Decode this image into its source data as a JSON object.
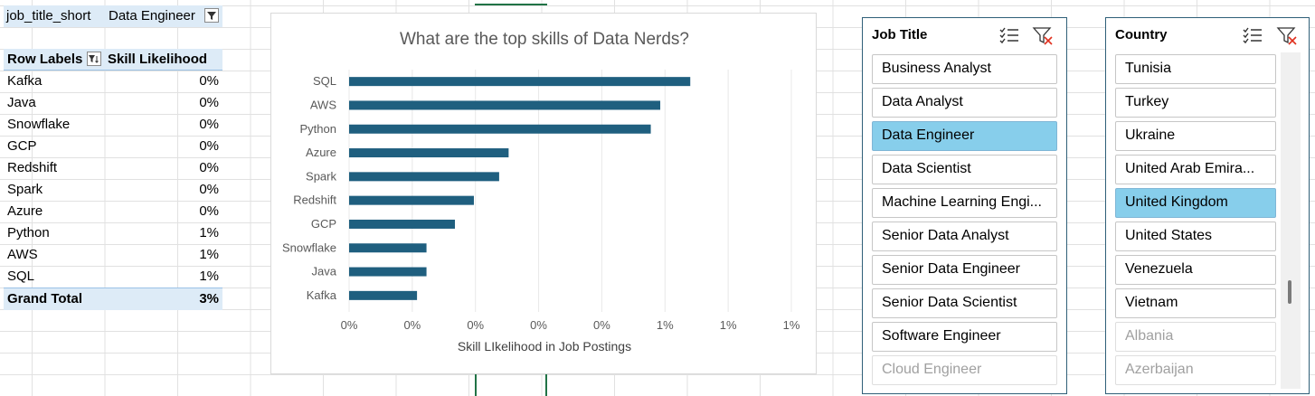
{
  "pivot": {
    "filter_field": "job_title_short",
    "filter_value": "Data Engineer",
    "header_row_labels": "Row Labels",
    "header_value": "Skill Likelihood",
    "rows": [
      {
        "label": "Kafka",
        "value": "0%"
      },
      {
        "label": "Java",
        "value": "0%"
      },
      {
        "label": "Snowflake",
        "value": "0%"
      },
      {
        "label": "GCP",
        "value": "0%"
      },
      {
        "label": "Redshift",
        "value": "0%"
      },
      {
        "label": "Spark",
        "value": "0%"
      },
      {
        "label": "Azure",
        "value": "0%"
      },
      {
        "label": "Python",
        "value": "1%"
      },
      {
        "label": "AWS",
        "value": "1%"
      },
      {
        "label": "SQL",
        "value": "1%"
      }
    ],
    "grand_total_label": "Grand Total",
    "grand_total_value": "3%"
  },
  "chart_data": {
    "type": "bar",
    "orientation": "horizontal",
    "title": "What are the top skills of Data Nerds?",
    "xlabel": "Skill LIkelihood in Job Postings",
    "ylabel": "",
    "categories": [
      "SQL",
      "AWS",
      "Python",
      "Azure",
      "Spark",
      "Redshift",
      "GCP",
      "Snowflake",
      "Java",
      "Kafka"
    ],
    "values": [
      1.08,
      0.985,
      0.955,
      0.505,
      0.475,
      0.395,
      0.335,
      0.245,
      0.245,
      0.215
    ],
    "xlim": [
      0,
      1.4
    ],
    "x_tick_labels": [
      "0%",
      "0%",
      "0%",
      "0%",
      "0%",
      "1%",
      "1%",
      "1%"
    ],
    "bar_color": "#1f5f7f",
    "grid": true
  },
  "slicer_job_title": {
    "header": "Job Title",
    "items": [
      {
        "label": "Business Analyst",
        "state": "normal"
      },
      {
        "label": "Data Analyst",
        "state": "normal"
      },
      {
        "label": "Data Engineer",
        "state": "selected"
      },
      {
        "label": "Data Scientist",
        "state": "normal"
      },
      {
        "label": "Machine Learning Engi...",
        "state": "normal"
      },
      {
        "label": "Senior Data Analyst",
        "state": "normal"
      },
      {
        "label": "Senior Data Engineer",
        "state": "normal"
      },
      {
        "label": "Senior Data Scientist",
        "state": "normal"
      },
      {
        "label": "Software Engineer",
        "state": "normal"
      },
      {
        "label": "Cloud Engineer",
        "state": "dimmed"
      }
    ]
  },
  "slicer_country": {
    "header": "Country",
    "items": [
      {
        "label": "Tunisia",
        "state": "normal"
      },
      {
        "label": "Turkey",
        "state": "normal"
      },
      {
        "label": "Ukraine",
        "state": "normal"
      },
      {
        "label": "United Arab Emira...",
        "state": "normal"
      },
      {
        "label": "United Kingdom",
        "state": "selected"
      },
      {
        "label": "United States",
        "state": "normal"
      },
      {
        "label": "Venezuela",
        "state": "normal"
      },
      {
        "label": "Vietnam",
        "state": "normal"
      },
      {
        "label": "Albania",
        "state": "dimmed"
      },
      {
        "label": "Azerbaijan",
        "state": "dimmed"
      }
    ]
  },
  "icons": {
    "multi_select": "multi-select-icon",
    "clear_filter": "clear-filter-icon",
    "filter_dropdown": "filter-dropdown-icon"
  },
  "colors": {
    "selected_item": "#87ceeb",
    "pivot_header": "#ddebf7",
    "clear_filter_red": "#e0301e"
  }
}
